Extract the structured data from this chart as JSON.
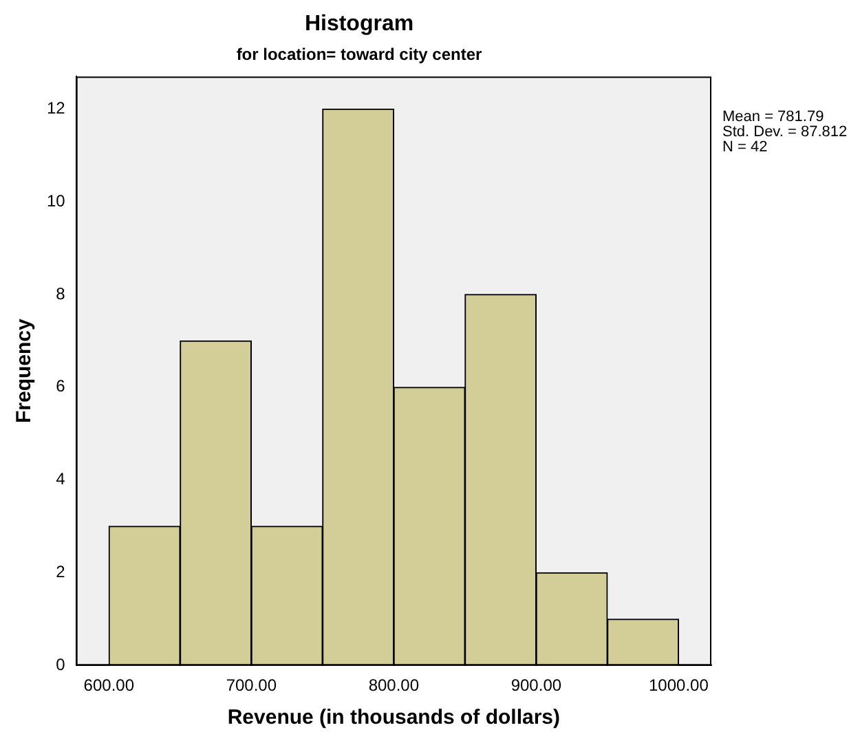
{
  "chart_data": {
    "type": "histogram",
    "title": "Histogram",
    "subtitle": "for location= toward city center",
    "xlabel": "Revenue (in thousands of dollars)",
    "ylabel": "Frequency",
    "bins": [
      600,
      650,
      700,
      750,
      800,
      850,
      900,
      950,
      1000
    ],
    "values": [
      3,
      7,
      3,
      12,
      6,
      8,
      2,
      1
    ],
    "color": "#d3ce97",
    "xlim": [
      577,
      1023
    ],
    "xticks": [
      {
        "value": 600,
        "label": "600.00"
      },
      {
        "value": 700,
        "label": "700.00"
      },
      {
        "value": 800,
        "label": "800.00"
      },
      {
        "value": 900,
        "label": "900.00"
      },
      {
        "value": 1000,
        "label": "1000.00"
      }
    ],
    "ylim": [
      0,
      12.7
    ],
    "yticks": [
      0,
      2,
      4,
      6,
      8,
      10,
      12
    ],
    "grid": false,
    "legend": false,
    "annotations": [
      "Mean = 781.79",
      "Std. Dev. = 87.812",
      "N = 42"
    ]
  }
}
